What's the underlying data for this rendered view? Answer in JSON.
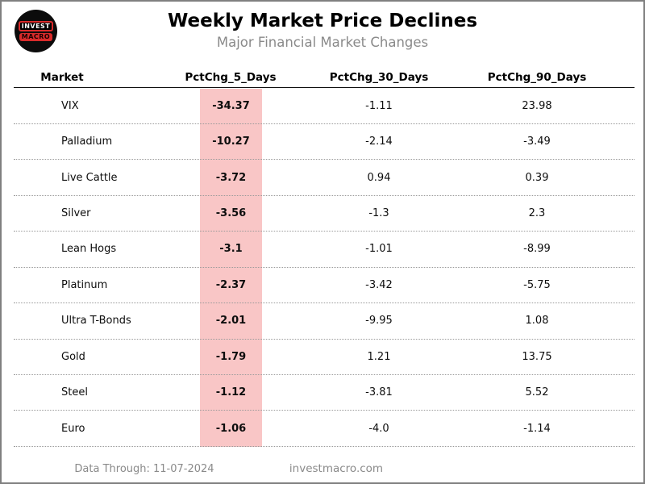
{
  "logo": {
    "line1": "INVEST",
    "line2": "MACRO"
  },
  "header": {
    "title": "Weekly Market Price Declines",
    "subtitle": "Major Financial Market Changes"
  },
  "table": {
    "columns": [
      "Market",
      "PctChg_5_Days",
      "PctChg_30_Days",
      "PctChg_90_Days"
    ],
    "rows": [
      {
        "market": "VIX",
        "pctchg_5_days": "-34.37",
        "pctchg_30_days": "-1.11",
        "pctchg_90_days": "23.98"
      },
      {
        "market": "Palladium",
        "pctchg_5_days": "-10.27",
        "pctchg_30_days": "-2.14",
        "pctchg_90_days": "-3.49"
      },
      {
        "market": "Live Cattle",
        "pctchg_5_days": "-3.72",
        "pctchg_30_days": "0.94",
        "pctchg_90_days": "0.39"
      },
      {
        "market": "Silver",
        "pctchg_5_days": "-3.56",
        "pctchg_30_days": "-1.3",
        "pctchg_90_days": "2.3"
      },
      {
        "market": "Lean Hogs",
        "pctchg_5_days": "-3.1",
        "pctchg_30_days": "-1.01",
        "pctchg_90_days": "-8.99"
      },
      {
        "market": "Platinum",
        "pctchg_5_days": "-2.37",
        "pctchg_30_days": "-3.42",
        "pctchg_90_days": "-5.75"
      },
      {
        "market": "Ultra T-Bonds",
        "pctchg_5_days": "-2.01",
        "pctchg_30_days": "-9.95",
        "pctchg_90_days": "1.08"
      },
      {
        "market": "Gold",
        "pctchg_5_days": "-1.79",
        "pctchg_30_days": "1.21",
        "pctchg_90_days": "13.75"
      },
      {
        "market": "Steel",
        "pctchg_5_days": "-1.12",
        "pctchg_30_days": "-3.81",
        "pctchg_90_days": "5.52"
      },
      {
        "market": "Euro",
        "pctchg_5_days": "-1.06",
        "pctchg_30_days": "-4.0",
        "pctchg_90_days": "-1.14"
      }
    ],
    "highlight_color": "#f9c6c6"
  },
  "footer": {
    "data_through": "Data Through: 11-07-2024",
    "website": "investmacro.com"
  },
  "chart_data": {
    "type": "table",
    "title": "Weekly Market Price Declines",
    "subtitle": "Major Financial Market Changes",
    "columns": [
      "Market",
      "PctChg_5_Days",
      "PctChg_30_Days",
      "PctChg_90_Days"
    ],
    "rows": [
      [
        "VIX",
        -34.37,
        -1.11,
        23.98
      ],
      [
        "Palladium",
        -10.27,
        -2.14,
        -3.49
      ],
      [
        "Live Cattle",
        -3.72,
        0.94,
        0.39
      ],
      [
        "Silver",
        -3.56,
        -1.3,
        2.3
      ],
      [
        "Lean Hogs",
        -3.1,
        -1.01,
        -8.99
      ],
      [
        "Platinum",
        -2.37,
        -3.42,
        -5.75
      ],
      [
        "Ultra T-Bonds",
        -2.01,
        -9.95,
        1.08
      ],
      [
        "Gold",
        -1.79,
        1.21,
        13.75
      ],
      [
        "Steel",
        -1.12,
        -3.81,
        5.52
      ],
      [
        "Euro",
        -1.06,
        -4.0,
        -1.14
      ]
    ],
    "highlighted_column": "PctChg_5_Days",
    "highlight_color": "#f9c6c6",
    "sort": "ascending by PctChg_5_Days"
  }
}
